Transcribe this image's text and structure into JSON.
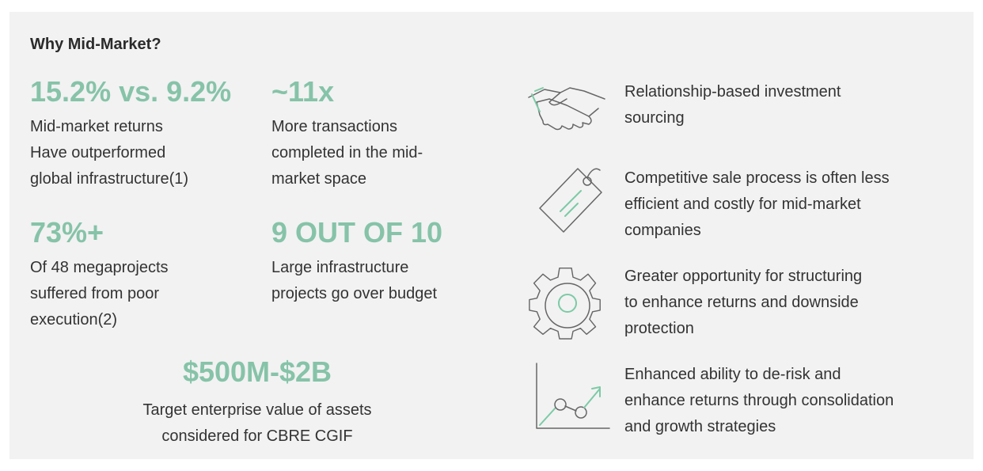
{
  "title": "Why Mid-Market?",
  "stats": [
    {
      "figure": "15.2% vs. 9.2%",
      "lines": [
        "Mid-market returns",
        "Have outperformed",
        "global infrastructure(1)"
      ]
    },
    {
      "figure": "~11x",
      "lines": [
        "More transactions",
        "completed in the mid-",
        "market space"
      ]
    },
    {
      "figure": "73%+",
      "lines": [
        "Of 48 megaprojects",
        "suffered from poor",
        "execution(2)"
      ]
    },
    {
      "figure": "9 OUT OF 10",
      "lines": [
        "Large infrastructure",
        "projects go over budget"
      ]
    },
    {
      "figure": "$500M-$2B",
      "lines": [
        "Target enterprise value of assets",
        "considered for CBRE CGIF"
      ]
    }
  ],
  "points": [
    {
      "lines": [
        "Relationship-based investment",
        "sourcing"
      ]
    },
    {
      "lines": [
        "Competitive sale process is often less",
        "efficient and costly for mid-market",
        "companies"
      ]
    },
    {
      "lines": [
        "Greater opportunity for structuring",
        "to enhance returns and downside",
        "protection"
      ]
    },
    {
      "lines": [
        "Enhanced ability to de-risk and",
        "enhance returns through consolidation",
        "and growth strategies"
      ]
    }
  ]
}
